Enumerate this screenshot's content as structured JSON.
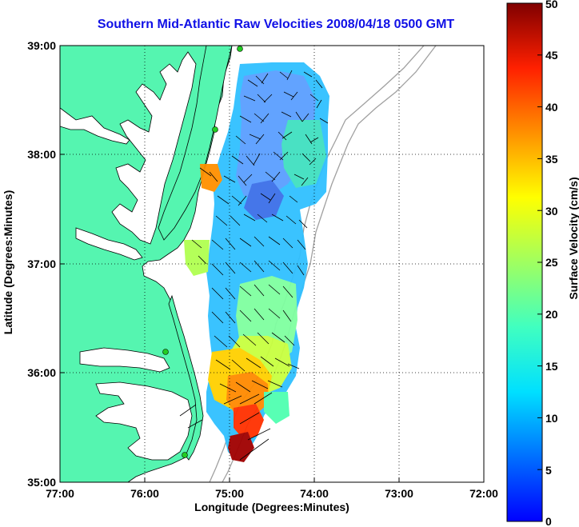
{
  "title": "Southern Mid-Atlantic Raw Velocities 2008/04/18 0500 GMT",
  "xlabel": "Longitude (Degrees:Minutes)",
  "ylabel": "Latitude (Degrees:Minutes)",
  "colorbar_label": "Surface Velocity (cm/s)",
  "x_ticks": [
    "77:00",
    "76:00",
    "75:00",
    "74:00",
    "73:00",
    "72:00"
  ],
  "y_ticks": [
    "39:00",
    "38:00",
    "37:00",
    "36:00",
    "35:00"
  ],
  "colorbar_ticks": [
    "50",
    "45",
    "40",
    "35",
    "30",
    "25",
    "20",
    "15",
    "10",
    "5",
    "0"
  ],
  "colors": {
    "land": "#55f5b0",
    "water": "#ffffff",
    "grid": "#000000",
    "bathymetry": "#a0a0a0",
    "title": "#1010e6",
    "station": "#22cc22"
  }
}
